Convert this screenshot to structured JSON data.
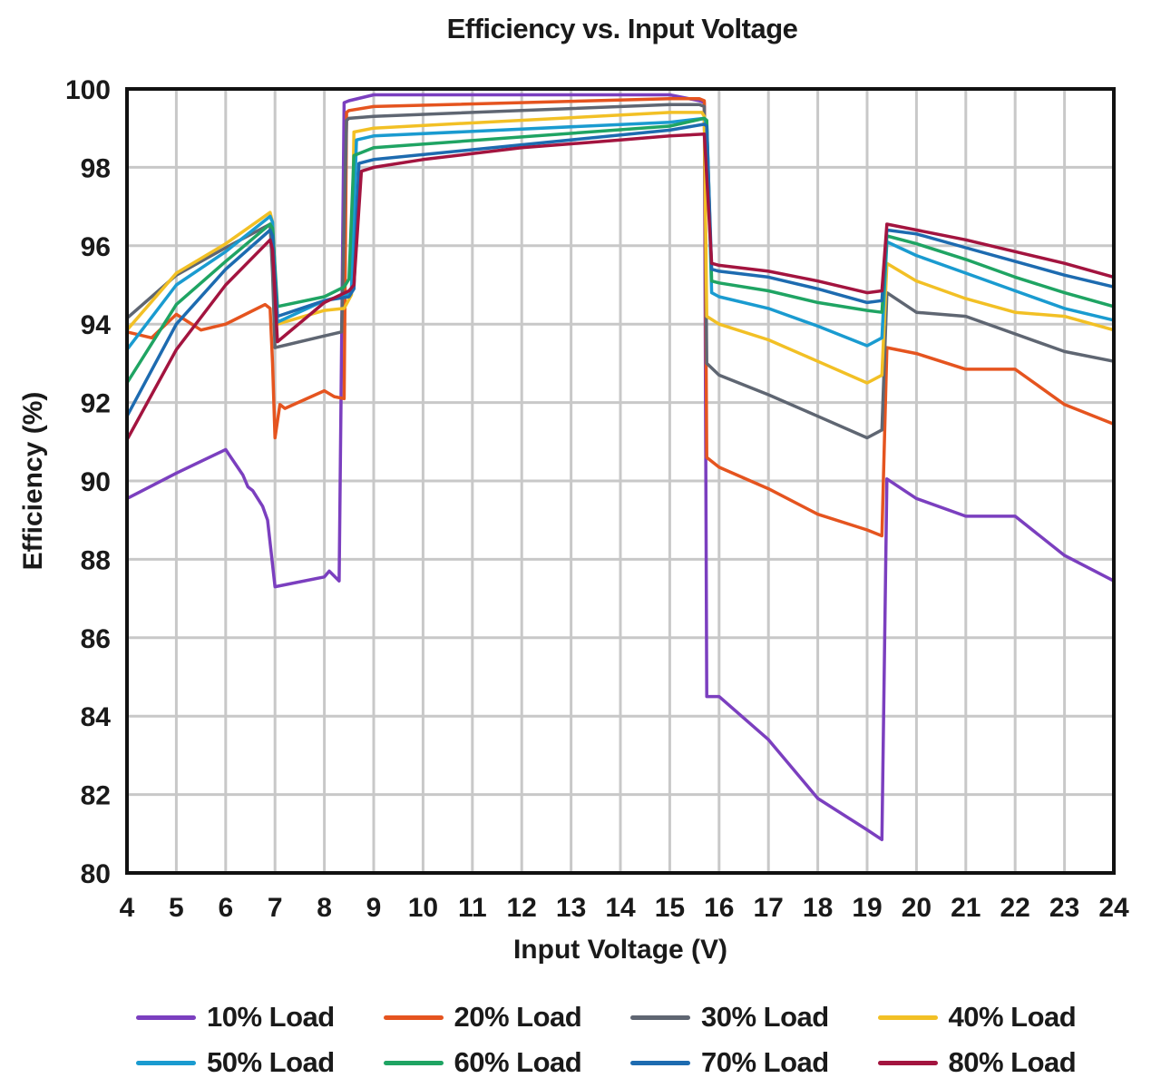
{
  "chart_data": {
    "type": "line",
    "title": "Efficiency vs. Input Voltage",
    "xlabel": "Input Voltage (V)",
    "ylabel": "Efficiency (%)",
    "xlim": [
      4,
      24
    ],
    "ylim": [
      80,
      100
    ],
    "xticks": [
      4,
      5,
      6,
      7,
      8,
      9,
      10,
      11,
      12,
      13,
      14,
      15,
      16,
      17,
      18,
      19,
      20,
      21,
      22,
      23,
      24
    ],
    "yticks": [
      80,
      82,
      84,
      86,
      88,
      90,
      92,
      94,
      96,
      98,
      100
    ],
    "grid": true,
    "legend_position": "bottom",
    "series": [
      {
        "name": "10% Load",
        "color": "#7b3fbf",
        "x": [
          4,
          5,
          6,
          6.35,
          6.45,
          6.55,
          6.75,
          6.85,
          7.0,
          8.0,
          8.1,
          8.3,
          8.4,
          8.5,
          9.0,
          15.0,
          15.6,
          15.7,
          15.75,
          16.0,
          17.0,
          18.0,
          19.0,
          19.3,
          19.4,
          20.0,
          21.0,
          22.0,
          23.0,
          24.0
        ],
        "y": [
          89.55,
          90.2,
          90.8,
          90.15,
          89.85,
          89.75,
          89.35,
          89.0,
          87.3,
          87.55,
          87.7,
          87.45,
          99.65,
          99.7,
          99.85,
          99.85,
          99.7,
          99.65,
          84.5,
          84.5,
          83.4,
          81.9,
          81.1,
          80.85,
          90.05,
          89.55,
          89.1,
          89.1,
          88.1,
          87.45
        ]
      },
      {
        "name": "20% Load",
        "color": "#e5541f",
        "x": [
          4,
          4.5,
          5,
          5.5,
          6,
          6.8,
          6.9,
          6.95,
          7.0,
          7.1,
          7.2,
          8.0,
          8.2,
          8.4,
          8.45,
          8.5,
          9.0,
          15.0,
          15.6,
          15.7,
          15.75,
          16.0,
          17.0,
          18.0,
          19.0,
          19.3,
          19.4,
          20.0,
          21.0,
          22.0,
          23.0,
          24.0
        ],
        "y": [
          93.8,
          93.65,
          94.25,
          93.85,
          94.0,
          94.5,
          94.4,
          93.0,
          91.1,
          91.95,
          91.85,
          92.3,
          92.15,
          92.1,
          99.4,
          99.45,
          99.55,
          99.75,
          99.75,
          99.7,
          90.6,
          90.35,
          89.8,
          89.15,
          88.75,
          88.6,
          93.4,
          93.25,
          92.85,
          92.85,
          91.95,
          91.45
        ]
      },
      {
        "name": "30% Load",
        "color": "#5f6672",
        "x": [
          4,
          5,
          6,
          6.9,
          6.95,
          7.0,
          8.0,
          8.35,
          8.45,
          8.5,
          9.0,
          15.0,
          15.6,
          15.7,
          15.75,
          16.0,
          17.0,
          18.0,
          19.0,
          19.3,
          19.4,
          20.0,
          21.0,
          22.0,
          23.0,
          24.0
        ],
        "y": [
          94.15,
          95.25,
          95.95,
          96.55,
          95.3,
          93.4,
          93.7,
          93.8,
          99.2,
          99.25,
          99.3,
          99.6,
          99.6,
          99.55,
          93.0,
          92.7,
          92.2,
          91.65,
          91.1,
          91.3,
          94.8,
          94.3,
          94.2,
          93.75,
          93.3,
          93.05
        ]
      },
      {
        "name": "40% Load",
        "color": "#f2c025",
        "x": [
          4,
          5,
          6,
          6.9,
          6.95,
          7.05,
          8.0,
          8.4,
          8.55,
          8.6,
          9.0,
          15.0,
          15.65,
          15.7,
          15.75,
          16.0,
          17.0,
          18.0,
          19.0,
          19.3,
          19.4,
          20.0,
          21.0,
          22.0,
          23.0,
          24.0
        ],
        "y": [
          93.85,
          95.3,
          96.05,
          96.85,
          96.6,
          94.0,
          94.35,
          94.4,
          94.75,
          98.9,
          99.0,
          99.4,
          99.4,
          99.3,
          94.2,
          94.0,
          93.6,
          93.05,
          92.5,
          92.7,
          95.55,
          95.1,
          94.65,
          94.3,
          94.2,
          93.85
        ]
      },
      {
        "name": "50% Load",
        "color": "#1a9bd0",
        "x": [
          4,
          5,
          6,
          6.9,
          6.95,
          7.05,
          8.0,
          8.45,
          8.55,
          8.65,
          9.0,
          15.0,
          15.7,
          15.75,
          15.85,
          16.0,
          17.0,
          18.0,
          19.0,
          19.3,
          19.4,
          20.0,
          21.0,
          22.0,
          23.0,
          24.0
        ],
        "y": [
          93.35,
          95.0,
          95.85,
          96.75,
          96.6,
          94.05,
          94.6,
          94.75,
          94.9,
          98.7,
          98.8,
          99.15,
          99.25,
          99.1,
          94.8,
          94.7,
          94.4,
          93.95,
          93.45,
          93.65,
          96.1,
          95.75,
          95.3,
          94.85,
          94.4,
          94.1
        ]
      },
      {
        "name": "60% Load",
        "color": "#1fa463",
        "x": [
          4,
          5,
          6,
          6.9,
          6.95,
          7.05,
          8.0,
          8.4,
          8.5,
          8.6,
          9.0,
          15.0,
          15.7,
          15.75,
          15.85,
          16.0,
          17.0,
          18.0,
          19.0,
          19.3,
          19.4,
          20.0,
          21.0,
          22.0,
          23.0,
          24.0
        ],
        "y": [
          92.5,
          94.5,
          95.6,
          96.55,
          96.45,
          94.45,
          94.7,
          94.95,
          95.15,
          98.3,
          98.5,
          99.05,
          99.25,
          99.2,
          95.1,
          95.05,
          94.85,
          94.55,
          94.35,
          94.3,
          96.25,
          96.05,
          95.65,
          95.2,
          94.8,
          94.45
        ]
      },
      {
        "name": "70% Load",
        "color": "#1d6bb0",
        "x": [
          4,
          5,
          6,
          6.9,
          6.95,
          7.05,
          8.0,
          8.5,
          8.6,
          8.7,
          9.0,
          15.0,
          15.7,
          15.75,
          15.85,
          16.0,
          17.0,
          18.0,
          19.0,
          19.3,
          19.4,
          20.0,
          21.0,
          22.0,
          23.0,
          24.0
        ],
        "y": [
          91.65,
          94.0,
          95.4,
          96.4,
          96.25,
          94.2,
          94.6,
          94.7,
          94.9,
          98.1,
          98.2,
          98.95,
          99.1,
          99.05,
          95.4,
          95.35,
          95.2,
          94.9,
          94.55,
          94.6,
          96.4,
          96.3,
          95.95,
          95.6,
          95.25,
          94.95
        ]
      },
      {
        "name": "80% Load",
        "color": "#a3143f",
        "x": [
          4,
          5,
          6,
          6.9,
          6.95,
          7.05,
          8.0,
          8.5,
          8.6,
          8.75,
          9.0,
          10.0,
          11.0,
          12.0,
          13.0,
          14.0,
          15.0,
          15.7,
          15.85,
          16.0,
          17.0,
          18.0,
          19.0,
          19.3,
          19.4,
          20.0,
          21.0,
          22.0,
          23.0,
          24.0
        ],
        "y": [
          91.05,
          93.35,
          95.0,
          96.15,
          95.9,
          93.55,
          94.55,
          94.85,
          95.0,
          97.9,
          98.0,
          98.2,
          98.35,
          98.5,
          98.6,
          98.7,
          98.8,
          98.85,
          95.55,
          95.5,
          95.35,
          95.1,
          94.8,
          94.85,
          96.55,
          96.4,
          96.15,
          95.85,
          95.55,
          95.2
        ]
      }
    ]
  }
}
